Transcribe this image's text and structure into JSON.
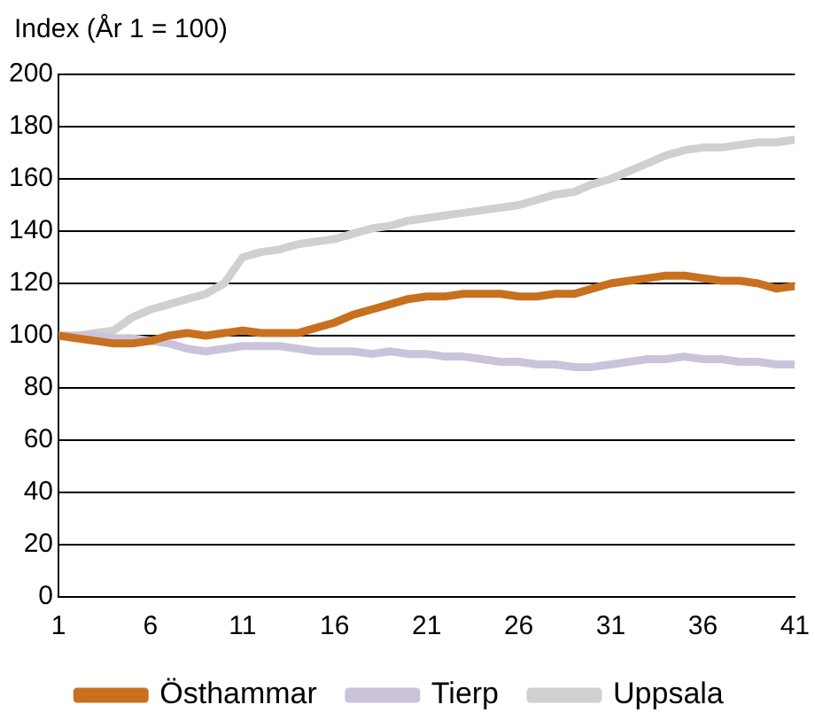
{
  "chart_data": {
    "type": "line",
    "ylabel": "Index (År 1 = 100)",
    "x": [
      1,
      2,
      3,
      4,
      5,
      6,
      7,
      8,
      9,
      10,
      11,
      12,
      13,
      14,
      15,
      16,
      17,
      18,
      19,
      20,
      21,
      22,
      23,
      24,
      25,
      26,
      27,
      28,
      29,
      30,
      31,
      32,
      33,
      34,
      35,
      36,
      37,
      38,
      39,
      40,
      41
    ],
    "xlim": [
      1,
      41
    ],
    "xticks": [
      1,
      6,
      11,
      16,
      21,
      26,
      31,
      36,
      41
    ],
    "ylim": [
      0,
      200
    ],
    "yticks": [
      0,
      20,
      40,
      60,
      80,
      100,
      120,
      140,
      160,
      180,
      200
    ],
    "grid": "y",
    "legend": "bottom",
    "marker": "none",
    "line_style": "solid",
    "series": [
      {
        "name": "Östhammar",
        "color": "#c8701e",
        "values": [
          100,
          99,
          98,
          97,
          97,
          98,
          100,
          101,
          100,
          101,
          102,
          101,
          101,
          101,
          103,
          105,
          108,
          110,
          112,
          114,
          115,
          115,
          116,
          116,
          116,
          115,
          115,
          116,
          116,
          118,
          120,
          121,
          122,
          123,
          123,
          122,
          121,
          121,
          120,
          118,
          119
        ]
      },
      {
        "name": "Tierp",
        "color": "#cbc3dc",
        "values": [
          100,
          100,
          100,
          99,
          99,
          98,
          97,
          95,
          94,
          95,
          96,
          96,
          96,
          95,
          94,
          94,
          94,
          93,
          94,
          93,
          93,
          92,
          92,
          91,
          90,
          90,
          89,
          89,
          88,
          88,
          89,
          90,
          91,
          91,
          92,
          91,
          91,
          90,
          90,
          89,
          89
        ]
      },
      {
        "name": "Uppsala",
        "color": "#d0d0d0",
        "values": [
          100,
          100,
          101,
          102,
          107,
          110,
          112,
          114,
          116,
          120,
          130,
          132,
          133,
          135,
          136,
          137,
          139,
          141,
          142,
          144,
          145,
          146,
          147,
          148,
          149,
          150,
          152,
          154,
          155,
          158,
          160,
          163,
          166,
          169,
          171,
          172,
          172,
          173,
          174,
          174,
          175
        ]
      }
    ]
  }
}
